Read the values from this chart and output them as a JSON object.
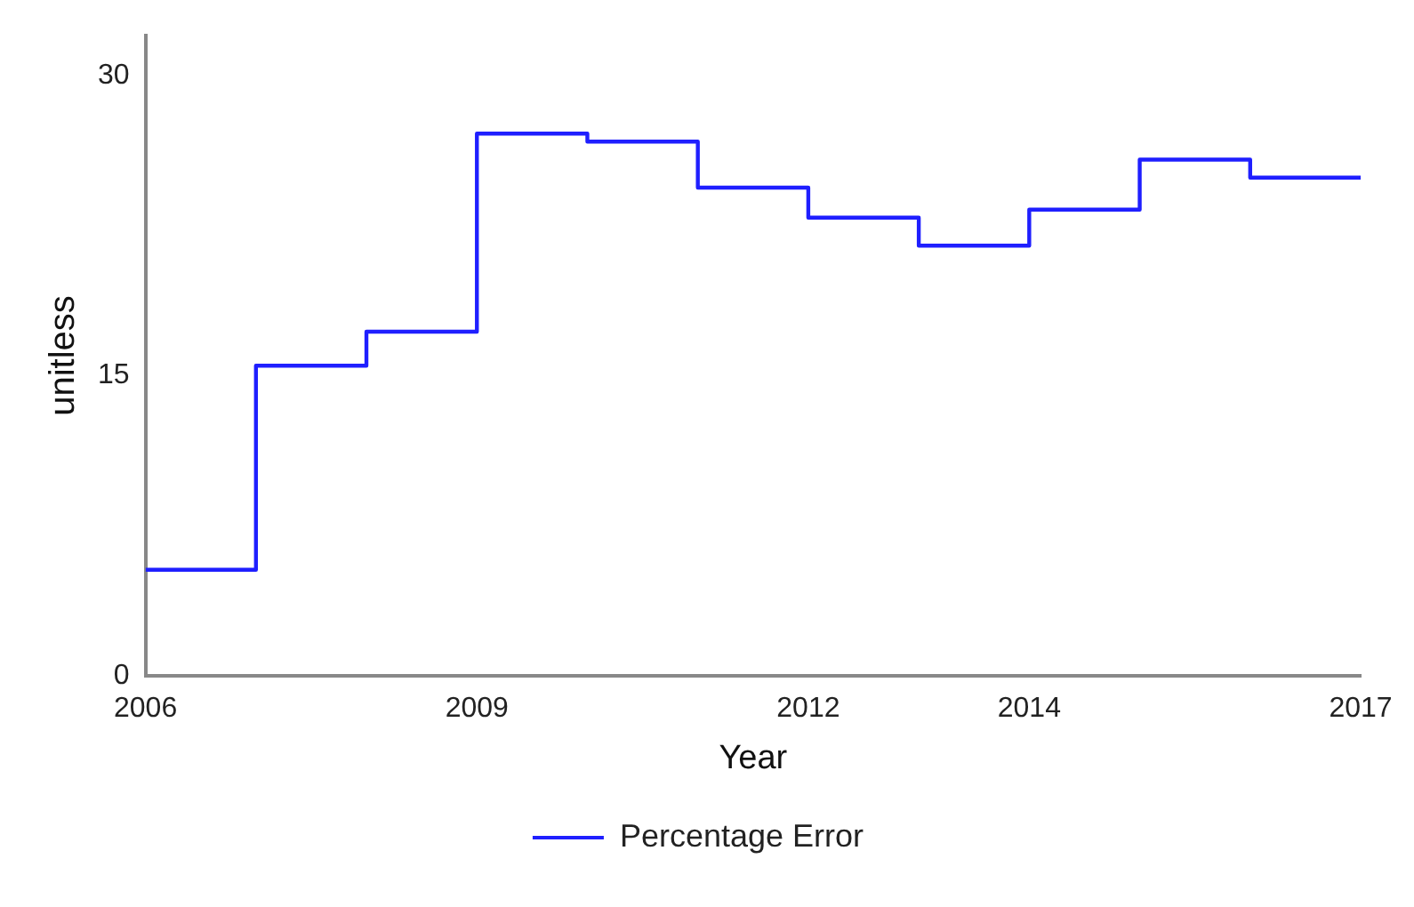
{
  "chart_data": {
    "type": "step",
    "xlabel": "Year",
    "ylabel": "unitless",
    "x": [
      2006,
      2007,
      2008,
      2009,
      2010,
      2011,
      2012,
      2013,
      2014,
      2015,
      2016,
      2017
    ],
    "series": [
      {
        "name": "Percentage Error",
        "color": "#1f1fff",
        "values": [
          5.3,
          15.5,
          17.2,
          27.1,
          26.7,
          24.4,
          22.9,
          21.5,
          23.3,
          25.8,
          24.9,
          24.9
        ]
      }
    ],
    "xlim": [
      2006,
      2017
    ],
    "xticks": [
      2006,
      2009,
      2012,
      2014,
      2017
    ],
    "ylim": [
      0,
      32
    ],
    "yticks": [
      0,
      15,
      30
    ],
    "grid": false,
    "legend": "bottom",
    "marker": "none",
    "line_style": "solid"
  }
}
